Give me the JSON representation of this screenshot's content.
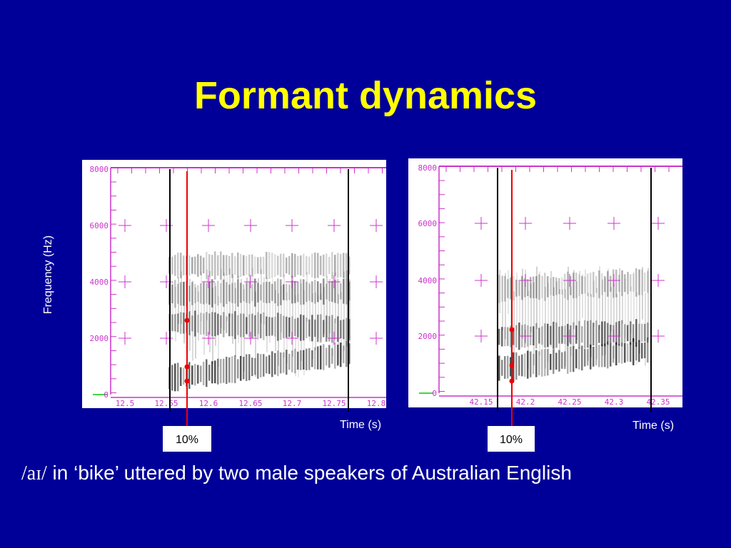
{
  "title": "Formant dynamics",
  "y_axis_label": "Frequency (Hz)",
  "panels": [
    {
      "yticks": [
        "8000",
        "6000",
        "4000",
        "2000",
        "0"
      ],
      "xticks": [
        "12.5",
        "12.55",
        "12.6",
        "12.65",
        "12.7",
        "12.75",
        "12.8"
      ],
      "x_axis_label": "Time (s)",
      "marker_label": "10%"
    },
    {
      "yticks": [
        "8000",
        "6000",
        "4000",
        "2000",
        "0"
      ],
      "xticks": [
        "42.15",
        "42.2",
        "42.25",
        "42.3",
        "42.35"
      ],
      "x_axis_label": "Time (s)",
      "marker_label": "10%"
    }
  ],
  "caption": {
    "phoneme": "/aɪ/",
    "text": " in ‘bike’ uttered by two male speakers of Australian English"
  }
}
